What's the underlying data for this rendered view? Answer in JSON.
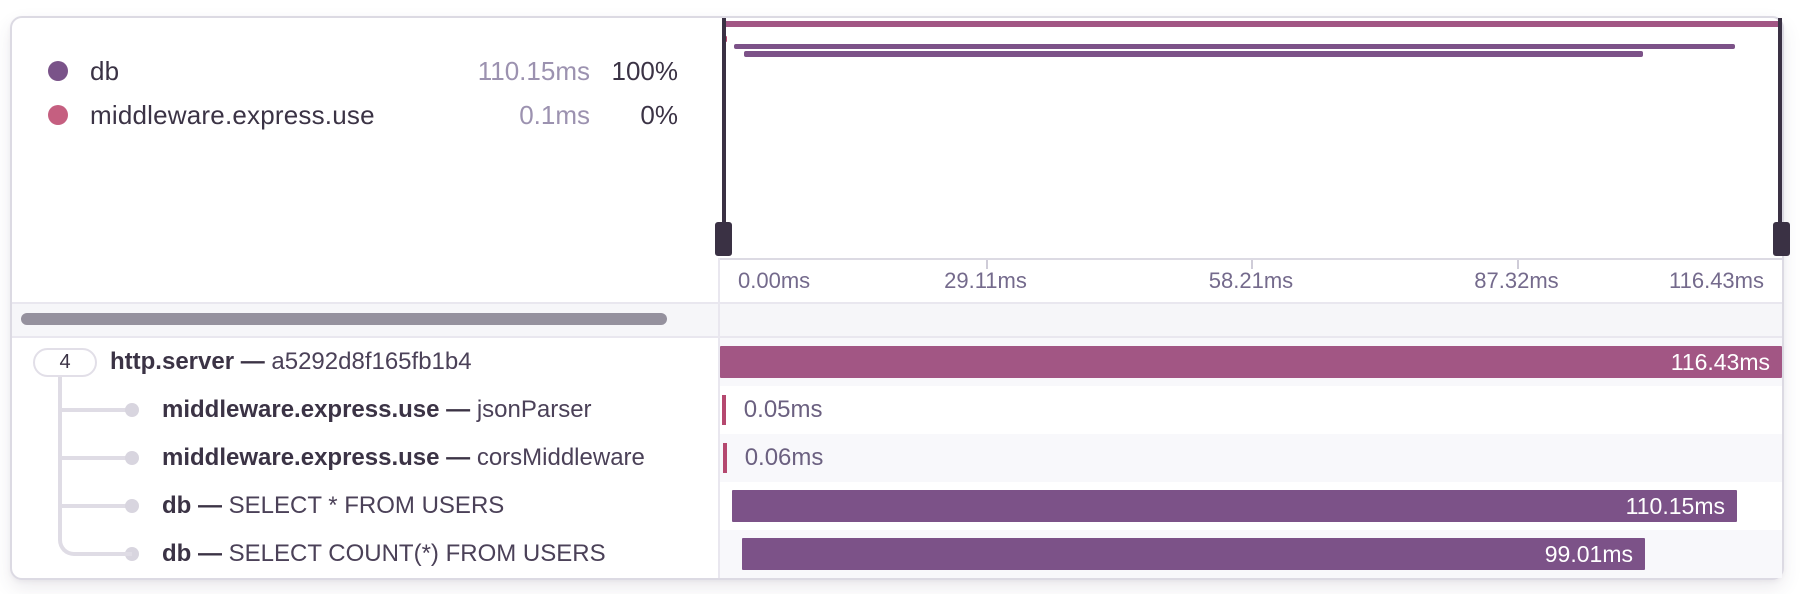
{
  "colors": {
    "root_span": "#a25684",
    "db_span": "#7c5288",
    "middleware_span": "#b5486f",
    "legend_db_dot": "#7a5389",
    "legend_middleware_dot": "#c55f80",
    "handle": "#3a3144",
    "alt_row": "#f8f8fb"
  },
  "legend": {
    "items": [
      {
        "name": "db",
        "duration": "110.15ms",
        "percent": "100%",
        "dot_color": "#7a5389"
      },
      {
        "name": "middleware.express.use",
        "duration": "0.1ms",
        "percent": "0%",
        "dot_color": "#c55f80"
      }
    ]
  },
  "axis": {
    "total_ms": 116.43,
    "tick_labels": [
      "0.00ms",
      "29.11ms",
      "58.21ms",
      "87.32ms",
      "116.43ms"
    ]
  },
  "trace": {
    "root_badge": "4",
    "total_ms": 116.43,
    "spans": [
      {
        "name": "http.server",
        "separator": "—",
        "detail": "a5292d8f165fb1b4",
        "start_ms": 0,
        "duration_ms": 116.43,
        "duration_label": "116.43ms",
        "color": "#a25684",
        "label_inside": true,
        "depth": 0
      },
      {
        "name": "middleware.express.use",
        "separator": "—",
        "detail": "jsonParser",
        "start_ms": 0.2,
        "duration_ms": 0.05,
        "duration_label": "0.05ms",
        "color": "#b5486f",
        "label_inside": false,
        "depth": 1
      },
      {
        "name": "middleware.express.use",
        "separator": "—",
        "detail": "corsMiddleware",
        "start_ms": 0.3,
        "duration_ms": 0.06,
        "duration_label": "0.06ms",
        "color": "#b5486f",
        "label_inside": false,
        "depth": 1
      },
      {
        "name": "db",
        "separator": "—",
        "detail": "SELECT * FROM USERS",
        "start_ms": 1.35,
        "duration_ms": 110.15,
        "duration_label": "110.15ms",
        "color": "#7c5288",
        "label_inside": true,
        "depth": 1
      },
      {
        "name": "db",
        "separator": "—",
        "detail": "SELECT COUNT(*) FROM USERS",
        "start_ms": 2.4,
        "duration_ms": 99.01,
        "duration_label": "99.01ms",
        "color": "#7c5288",
        "label_inside": true,
        "depth": 1
      }
    ]
  }
}
